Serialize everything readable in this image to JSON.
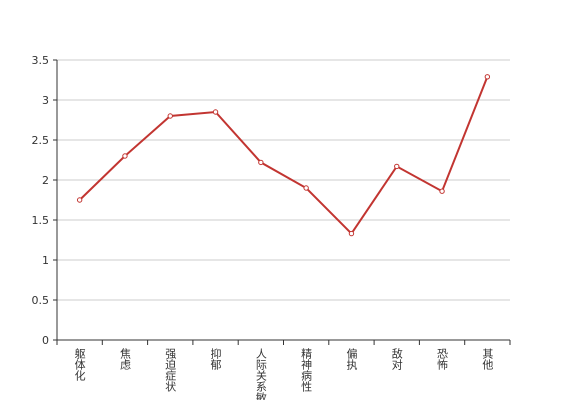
{
  "chart_data": {
    "type": "line",
    "categories": [
      "躯体化",
      "焦虑",
      "强迫症状",
      "抑郁",
      "人际关系敏感",
      "精神病性",
      "偏执",
      "敌对",
      "恐怖",
      "其他"
    ],
    "values": [
      1.75,
      2.3,
      2.8,
      2.85,
      2.22,
      1.9,
      1.33,
      2.17,
      1.86,
      3.29
    ],
    "color": "#c23531",
    "ylim": [
      0,
      3.5
    ],
    "yticks": [
      0,
      0.5,
      1,
      1.5,
      2,
      2.5,
      3,
      3.5
    ],
    "grid": true
  }
}
